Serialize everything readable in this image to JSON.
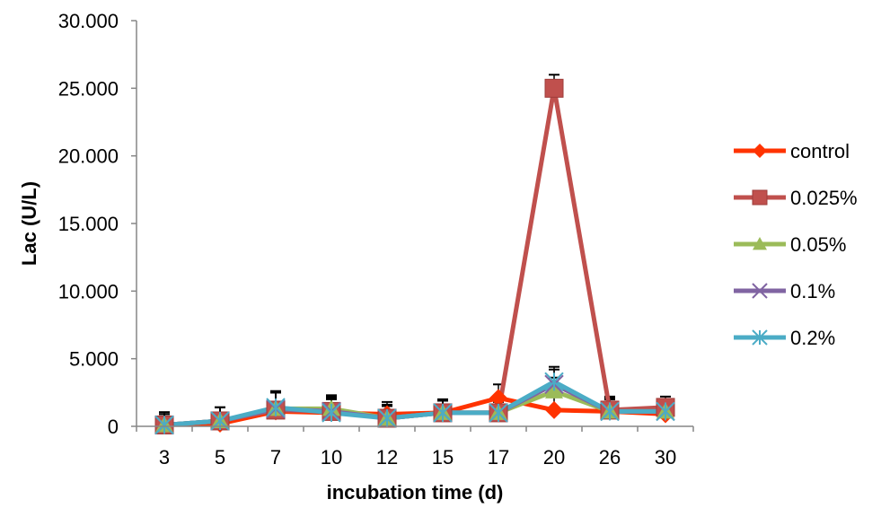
{
  "chart_data": {
    "type": "line",
    "title": "",
    "xlabel": "incubation time (d)",
    "ylabel": "Lac (U/L)",
    "categories": [
      "3",
      "5",
      "7",
      "10",
      "12",
      "15",
      "17",
      "20",
      "26",
      "30"
    ],
    "y_tick_labels": [
      "0",
      "5.000",
      "10.000",
      "15.000",
      "20.000",
      "25.000",
      "30.000"
    ],
    "ylim": [
      0,
      30
    ],
    "grid": false,
    "legend_position": "right",
    "error_bars": true,
    "series": [
      {
        "name": "control",
        "color": "#FF3300",
        "marker": "diamond",
        "values": [
          0.15,
          0.2,
          1.1,
          1.0,
          0.9,
          1.0,
          2.1,
          1.2,
          1.1,
          0.9
        ],
        "errors": [
          0.9,
          1.2,
          1.5,
          1.2,
          0.9,
          0.9,
          1.0,
          1.0,
          1.0,
          1.0
        ]
      },
      {
        "name": "0.025%",
        "color": "#C0504D",
        "marker": "square",
        "values": [
          0.1,
          0.4,
          1.2,
          1.1,
          0.6,
          1.0,
          1.0,
          25.0,
          1.2,
          1.4
        ],
        "errors": [
          0.8,
          1.0,
          1.3,
          1.1,
          1.0,
          1.0,
          0.8,
          1.0,
          1.0,
          0.8
        ]
      },
      {
        "name": "0.05%",
        "color": "#9BBB59",
        "marker": "triangle",
        "values": [
          0.1,
          0.4,
          1.3,
          1.3,
          0.6,
          1.0,
          1.0,
          2.6,
          1.1,
          1.1
        ],
        "errors": [
          0.8,
          1.0,
          1.2,
          1.0,
          0.9,
          0.9,
          0.9,
          1.0,
          0.9,
          0.8
        ]
      },
      {
        "name": "0.1%",
        "color": "#8064A2",
        "marker": "x",
        "values": [
          0.1,
          0.4,
          1.3,
          1.1,
          0.6,
          1.0,
          1.0,
          3.1,
          1.1,
          1.1
        ],
        "errors": [
          0.8,
          1.0,
          1.2,
          1.0,
          0.9,
          0.9,
          0.9,
          1.1,
          0.9,
          0.8
        ]
      },
      {
        "name": "0.2%",
        "color": "#4BACC6",
        "marker": "star",
        "values": [
          0.1,
          0.4,
          1.4,
          1.0,
          0.6,
          1.0,
          1.0,
          3.3,
          1.1,
          1.1
        ],
        "errors": [
          0.8,
          1.0,
          1.2,
          1.0,
          0.9,
          0.9,
          0.9,
          1.1,
          0.9,
          0.8
        ]
      }
    ]
  }
}
